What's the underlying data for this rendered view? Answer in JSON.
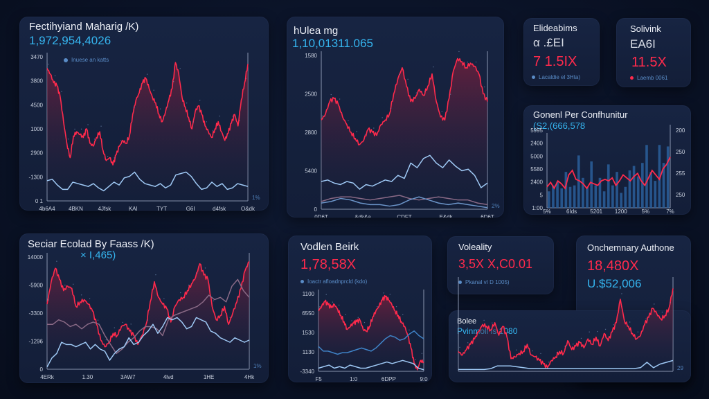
{
  "colors": {
    "background": "#0a1226",
    "panel": "#162240",
    "red": "#ff2a4c",
    "blue": "#35b5ef",
    "lightblue": "#9fc9f5",
    "mauve": "#8a6a86",
    "bar": "#2a5f9b"
  },
  "panels": {
    "p1": {
      "title": "Fectihyiand Maharig /K)",
      "value": "1,972,954,4026",
      "legend": "Inuese an katts"
    },
    "p2": {
      "title": "hUlea mg",
      "value": "1,10,01311.065"
    },
    "p3": {
      "title": "Elideabims",
      "sub": "α .£EI",
      "value": "7 1.5IX",
      "legend": "Lacaldie el 3Hta)"
    },
    "p4": {
      "title": "Solivink",
      "sub": "EA6I",
      "value": "11.5X",
      "legend": "Laemb 0061"
    },
    "p5": {
      "title": "Gonenl Per Confhunitur",
      "value": "(S2,(666,578"
    },
    "p6": {
      "title": "Seciar Ecolad By Faass /K)",
      "value": "× I,465)"
    },
    "p7": {
      "title": "Vodlen Beirk",
      "value": "1,78,58X",
      "legend": "Ioactr afloadnprcld (kdo)"
    },
    "p8": {
      "title": "Voleality",
      "value": "3,5X X,C0.01",
      "legend": "Pkanal vI D 1005)"
    },
    "p9": {
      "title": "Onchemnary Authone",
      "value_red": "18,480X",
      "value_blue": "U.$52,006"
    },
    "p10": {
      "title": "Bolee",
      "value": "Pvinmoli is 1080"
    }
  },
  "chart_data": [
    {
      "id": "p1",
      "type": "area",
      "title": "Fectihyiand Maharig /K)",
      "y_ticks": [
        "3470",
        "3800",
        "4500",
        "1000",
        "2900",
        "-1300",
        "0 1"
      ],
      "x_ticks": [
        "4b6A4",
        "4BKN",
        "4Jfsk",
        "KAI",
        "TYT",
        "G6I",
        "d4fsk",
        "Q&dk"
      ],
      "right_label": "1%",
      "ylim": [
        0,
        100
      ],
      "series": [
        {
          "name": "red",
          "values": [
            92,
            88,
            82,
            80,
            72,
            55,
            40,
            30,
            45,
            48,
            46,
            44,
            50,
            40,
            38,
            44,
            48,
            35,
            28,
            30,
            25,
            32,
            38,
            42,
            40,
            45,
            60,
            70,
            75,
            82,
            85,
            78,
            72,
            68,
            60,
            55,
            62,
            70,
            78,
            96,
            88,
            72,
            65,
            58,
            50,
            62,
            66,
            60,
            52,
            48,
            44,
            50,
            55,
            48,
            42,
            47,
            54,
            60,
            52,
            70,
            82,
            95
          ],
          "fill_to": "axis"
        },
        {
          "name": "lightblue",
          "values": [
            14,
            15,
            11,
            8,
            8,
            13,
            12,
            11,
            10,
            12,
            9,
            7,
            10,
            13,
            11,
            16,
            17,
            20,
            15,
            12,
            11,
            10,
            12,
            9,
            11,
            18,
            19,
            20,
            17,
            12,
            8,
            9,
            13,
            10,
            12,
            8,
            9,
            12,
            11,
            10
          ]
        }
      ]
    },
    {
      "id": "p2",
      "type": "area",
      "title": "hUlea mg",
      "y_ticks": [
        "1580",
        "2500",
        "2800",
        "5400",
        "0"
      ],
      "x_ticks": [
        "0D6T",
        "&dk&a",
        "CDFT",
        "E&dk",
        "6D6T"
      ],
      "right_label": "2%",
      "ylim": [
        0,
        100
      ],
      "series": [
        {
          "name": "red",
          "values": [
            58,
            62,
            70,
            72,
            68,
            60,
            55,
            50,
            46,
            42,
            45,
            52,
            50,
            48,
            55,
            58,
            62,
            75,
            85,
            92,
            80,
            70,
            72,
            78,
            74,
            80,
            88,
            70,
            60,
            58,
            72,
            90,
            98,
            96,
            92,
            95,
            93,
            88,
            75,
            70
          ],
          "fill_to": "axis"
        },
        {
          "name": "lightblue",
          "values": [
            18,
            19,
            17,
            16,
            18,
            17,
            13,
            16,
            15,
            17,
            19,
            18,
            22,
            20,
            30,
            27,
            33,
            35,
            30,
            27,
            32,
            28,
            25,
            26,
            22,
            14,
            17
          ]
        },
        {
          "name": "mauve",
          "values": [
            5,
            7,
            8,
            8,
            7,
            6,
            7,
            8,
            9,
            7,
            6,
            7,
            8,
            7,
            6,
            6,
            4,
            3
          ]
        },
        {
          "name": "lightblue2",
          "values": [
            4,
            5,
            7,
            6,
            4,
            3,
            3,
            2,
            3,
            6,
            8,
            6,
            4,
            3,
            4,
            3,
            2,
            1
          ]
        }
      ]
    },
    {
      "id": "p5",
      "type": "bar+line",
      "title": "Gonenl Per Confhunitur",
      "y_ticks_left": [
        "5995",
        "2400",
        "5000",
        "5580",
        "2400",
        "5",
        "1:00"
      ],
      "y_ticks_right": [
        "200",
        "250",
        "255",
        "250"
      ],
      "x_ticks": [
        "5%",
        "6Ids",
        "5201",
        "1200",
        "5%",
        "7%"
      ],
      "ylim": [
        0,
        100
      ],
      "bars": [
        22,
        30,
        35,
        26,
        48,
        28,
        30,
        70,
        40,
        28,
        62,
        30,
        40,
        22,
        58,
        30,
        48,
        20,
        28,
        50,
        56,
        42,
        60,
        84,
        48,
        36,
        84,
        60,
        82
      ],
      "line": [
        28,
        34,
        26,
        36,
        32,
        26,
        44,
        50,
        38,
        36,
        32,
        26,
        34,
        32,
        30,
        36,
        38,
        36,
        40,
        30,
        36,
        44,
        40,
        36,
        42,
        46,
        36,
        30,
        40,
        50,
        44,
        38,
        52,
        58,
        68
      ]
    },
    {
      "id": "p6",
      "type": "area",
      "title": "Seciar Ecolad By Faass /K)",
      "y_ticks": [
        "14000",
        "-5900",
        "-3300",
        "-1296",
        "0"
      ],
      "x_ticks": [
        "4ERk",
        "1.30",
        "3AW7",
        "4lvd",
        "1HE",
        "4Hk"
      ],
      "right_label": "1%",
      "ylim": [
        0,
        100
      ],
      "series": [
        {
          "name": "red",
          "values": [
            58,
            78,
            90,
            80,
            70,
            74,
            72,
            56,
            60,
            62,
            58,
            52,
            40,
            26,
            20,
            24,
            32,
            30,
            38,
            40,
            34,
            30,
            22,
            30,
            40,
            60,
            78,
            64,
            58,
            54,
            42,
            56,
            62,
            64,
            70,
            76,
            82,
            94,
            84,
            80,
            56,
            44,
            48,
            56,
            40,
            50,
            60,
            72,
            88,
            96
          ],
          "fill_to": "axis"
        },
        {
          "name": "mauve",
          "values": [
            40,
            40,
            44,
            42,
            38,
            40,
            36,
            40,
            42,
            40,
            30,
            22,
            14,
            18,
            24,
            28,
            34,
            38,
            38,
            36,
            30,
            44,
            48,
            50,
            52,
            54,
            56,
            60,
            66,
            62,
            64,
            60,
            74,
            80,
            70,
            64
          ]
        },
        {
          "name": "lightblue",
          "values": [
            2,
            10,
            14,
            24,
            22,
            22,
            20,
            22,
            24,
            18,
            22,
            18,
            16,
            8,
            14,
            18,
            20,
            28,
            22,
            24,
            30,
            34,
            40,
            32,
            38,
            46,
            44,
            46,
            42,
            36,
            38,
            46,
            44,
            42,
            34,
            32,
            28,
            26,
            24,
            28,
            26,
            24,
            26
          ]
        }
      ]
    },
    {
      "id": "p7",
      "type": "area",
      "title": "Vodlen Beirk",
      "y_ticks": [
        "1100",
        "6550",
        "1530",
        "1130",
        "-3340"
      ],
      "x_ticks": [
        "F5",
        "1:0",
        "6DPP",
        "9:0"
      ],
      "ylim": [
        0,
        100
      ],
      "series": [
        {
          "name": "red",
          "values": [
            78,
            84,
            90,
            86,
            82,
            86,
            80,
            72,
            64,
            54,
            58,
            62,
            64,
            66,
            54,
            52,
            58,
            70,
            78,
            84,
            92,
            96,
            92,
            86,
            78,
            72,
            64,
            58,
            46,
            30,
            10,
            2,
            14,
            12
          ],
          "fill_to": "axis"
        },
        {
          "name": "blue",
          "values": [
            32,
            26,
            26,
            24,
            22,
            24,
            24,
            26,
            28,
            30,
            28,
            26,
            30,
            36,
            42,
            46,
            44,
            40,
            42,
            48,
            52,
            46,
            42
          ]
        },
        {
          "name": "lightblue",
          "values": [
            4,
            6,
            8,
            4,
            6,
            4,
            8,
            6,
            4,
            4,
            6,
            8,
            10,
            12,
            10,
            12,
            14,
            12,
            10,
            4,
            2
          ]
        }
      ]
    },
    {
      "id": "p9",
      "type": "area",
      "title": "Onchemnary Authone",
      "right_label": "29",
      "ylim": [
        0,
        100
      ],
      "series": [
        {
          "name": "red",
          "values": [
            22,
            18,
            24,
            30,
            36,
            44,
            52,
            50,
            46,
            54,
            40,
            50,
            38,
            14,
            16,
            20,
            22,
            30,
            18,
            16,
            12,
            8,
            4,
            12,
            16,
            22,
            20,
            34,
            24,
            28,
            32,
            26,
            36,
            30,
            38,
            28,
            42,
            34,
            44,
            54,
            80,
            56,
            50,
            42,
            36,
            40,
            52,
            60,
            70,
            64,
            58,
            62,
            70,
            92
          ],
          "fill_to": "axis"
        },
        {
          "name": "lightblue",
          "values": [
            2,
            2,
            2,
            2,
            2,
            3,
            6,
            6,
            6,
            5,
            4,
            3,
            3,
            3,
            3,
            3,
            3,
            3,
            3,
            3,
            3,
            3,
            3,
            3,
            3,
            3,
            3,
            3,
            4,
            10,
            4,
            8,
            10,
            12
          ]
        }
      ]
    }
  ]
}
